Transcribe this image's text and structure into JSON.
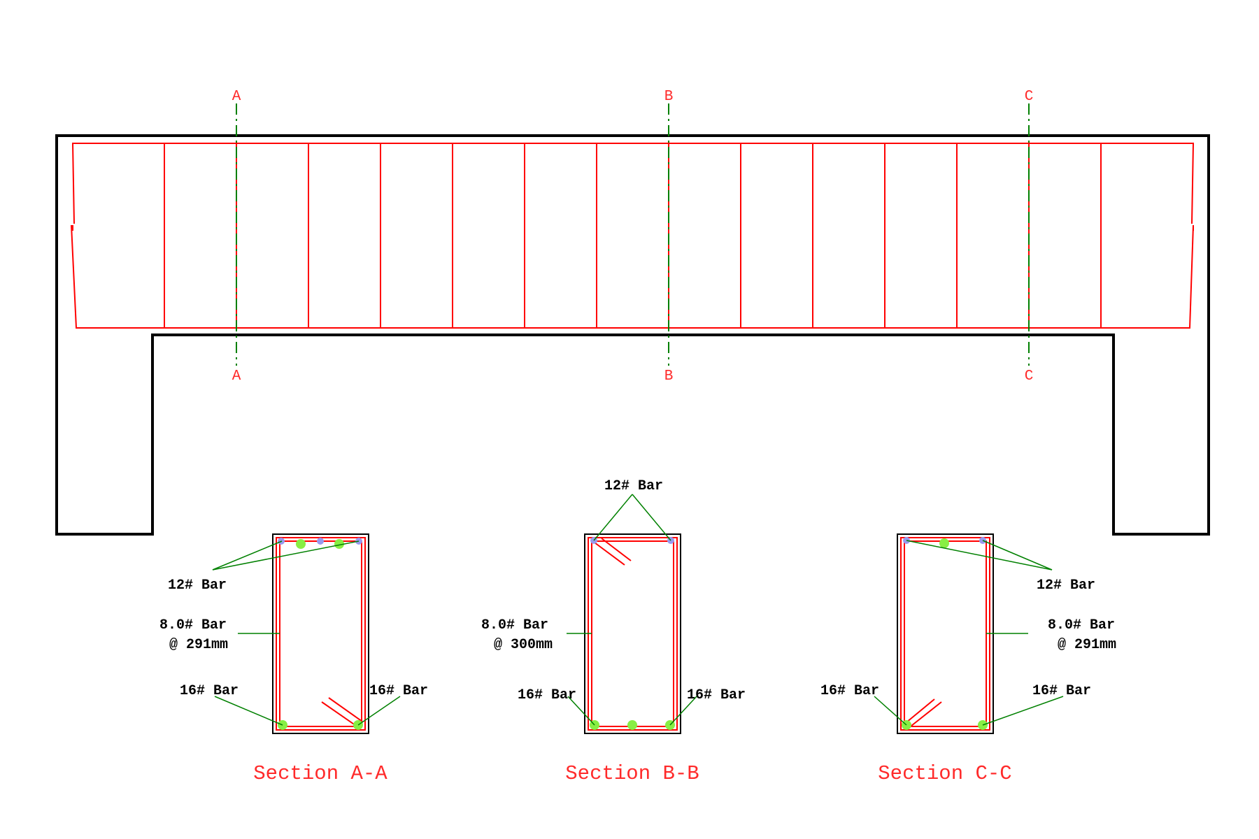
{
  "colors": {
    "concrete": "#000000",
    "rebar": "#ff0000",
    "section_line": "#008000",
    "leader": "#008000",
    "label_red": "#ff2a2a",
    "bar_main": "#88ee44",
    "bar_secondary": "#9999ee"
  },
  "cuts": {
    "a_top": "A",
    "a_bottom": "A",
    "b_top": "B",
    "b_bottom": "B",
    "c_top": "C",
    "c_bottom": "C"
  },
  "sections": {
    "aa": {
      "title": "Section A-A",
      "top_bar": "12# Bar",
      "stirrup": "8.0# Bar",
      "spacing": "@ 291mm",
      "bottom_left": "16# Bar",
      "bottom_right": "16# Bar"
    },
    "bb": {
      "title": "Section B-B",
      "top_bar": "12# Bar",
      "stirrup": "8.0# Bar",
      "spacing": "@ 300mm",
      "bottom_left": "16# Bar",
      "bottom_right": "16# Bar"
    },
    "cc": {
      "title": "Section C-C",
      "top_bar": "12# Bar",
      "stirrup": "8.0# Bar",
      "spacing": "@ 291mm",
      "bottom_left": "16# Bar",
      "bottom_right": "16# Bar"
    }
  }
}
